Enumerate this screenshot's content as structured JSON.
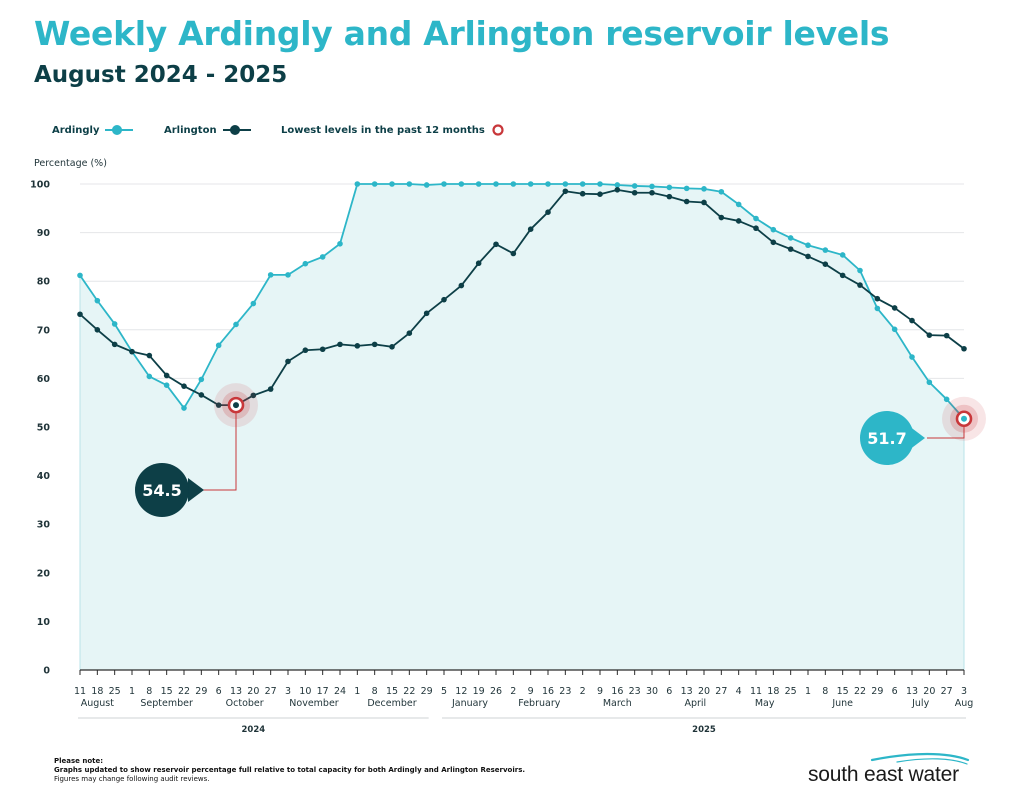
{
  "header": {
    "title": "Weekly Ardingly and Arlington reservoir levels",
    "subtitle": "August 2024 - 2025"
  },
  "legend": {
    "ardingly": "Ardingly",
    "arlington": "Arlington",
    "lowest": "Lowest levels in the past 12 months"
  },
  "colors": {
    "ardingly": "#2db6c8",
    "arlington": "#0d3f47",
    "fill": "#e6f5f6",
    "marker": "#c8373a",
    "grid": "#e4e6e8",
    "axis_text": "#1f3338"
  },
  "note": {
    "heading": "Please note:",
    "line1": "Graphs updated to show reservoir percentage full relative to total capacity for both Ardingly and Arlington Reservoirs.",
    "line2": "Figures may change following audit reviews."
  },
  "logo": {
    "text": "south east water"
  },
  "chart_data": {
    "type": "line",
    "title": "Weekly Ardingly and Arlington reservoir levels",
    "ylabel": "Percentage (%)",
    "ylim": [
      0,
      100
    ],
    "yticks": [
      0,
      10,
      20,
      30,
      40,
      50,
      60,
      70,
      80,
      90,
      100
    ],
    "grid": true,
    "legend_position": "top-left",
    "x_day_labels": [
      "11",
      "18",
      "25",
      "1",
      "8",
      "15",
      "22",
      "29",
      "6",
      "13",
      "20",
      "27",
      "3",
      "10",
      "17",
      "24",
      "1",
      "8",
      "15",
      "22",
      "29",
      "5",
      "12",
      "19",
      "26",
      "2",
      "9",
      "16",
      "23",
      "2",
      "9",
      "16",
      "23",
      "30",
      "6",
      "13",
      "20",
      "27",
      "4",
      "11",
      "18",
      "25",
      "1",
      "8",
      "15",
      "22",
      "29",
      "6",
      "13",
      "20",
      "27",
      "3"
    ],
    "months": [
      {
        "label": "August",
        "start": 0,
        "end": 2
      },
      {
        "label": "September",
        "start": 3,
        "end": 7
      },
      {
        "label": "October",
        "start": 8,
        "end": 11
      },
      {
        "label": "November",
        "start": 12,
        "end": 15
      },
      {
        "label": "December",
        "start": 16,
        "end": 20
      },
      {
        "label": "January",
        "start": 21,
        "end": 24
      },
      {
        "label": "February",
        "start": 25,
        "end": 28
      },
      {
        "label": "March",
        "start": 29,
        "end": 33
      },
      {
        "label": "April",
        "start": 34,
        "end": 37
      },
      {
        "label": "May",
        "start": 38,
        "end": 41
      },
      {
        "label": "June",
        "start": 42,
        "end": 46
      },
      {
        "label": "July",
        "start": 47,
        "end": 50
      },
      {
        "label": "Aug",
        "start": 51,
        "end": 51
      }
    ],
    "years": [
      {
        "label": "2024",
        "start": 0,
        "end": 20
      },
      {
        "label": "2025",
        "start": 21,
        "end": 51
      }
    ],
    "series": [
      {
        "name": "Ardingly",
        "values": [
          81.2,
          76,
          71.2,
          65.5,
          60.4,
          58.6,
          53.9,
          59.8,
          66.8,
          71.1,
          75.4,
          81.3,
          81.3,
          83.6,
          85,
          87.7,
          100,
          100,
          100,
          100,
          99.8,
          100,
          100,
          100,
          100,
          100,
          100,
          100,
          100,
          100,
          100,
          99.8,
          99.6,
          99.5,
          99.3,
          99.1,
          99,
          98.4,
          95.8,
          92.9,
          90.6,
          88.9,
          87.4,
          86.4,
          85.4,
          82.2,
          74.4,
          70.1,
          64.4,
          59.2,
          55.7,
          51.7
        ]
      },
      {
        "name": "Arlington",
        "values": [
          73.2,
          70,
          67,
          65.5,
          64.7,
          60.6,
          58.4,
          56.6,
          54.5,
          54.5,
          56.5,
          57.8,
          63.5,
          65.8,
          66,
          67,
          66.7,
          67,
          66.5,
          69.3,
          73.4,
          76.2,
          79.1,
          83.7,
          87.6,
          85.7,
          90.7,
          94.2,
          98.5,
          98,
          97.9,
          98.8,
          98.2,
          98.2,
          97.4,
          96.4,
          96.2,
          93.1,
          92.4,
          90.9,
          88,
          86.6,
          85.1,
          83.5,
          81.2,
          79.2,
          76.4,
          74.5,
          71.9,
          68.9,
          68.8,
          66.1
        ]
      }
    ],
    "annotations": [
      {
        "series": "Arlington",
        "index": 9,
        "label": "54.5"
      },
      {
        "series": "Ardingly",
        "index": 51,
        "label": "51.7"
      }
    ]
  }
}
